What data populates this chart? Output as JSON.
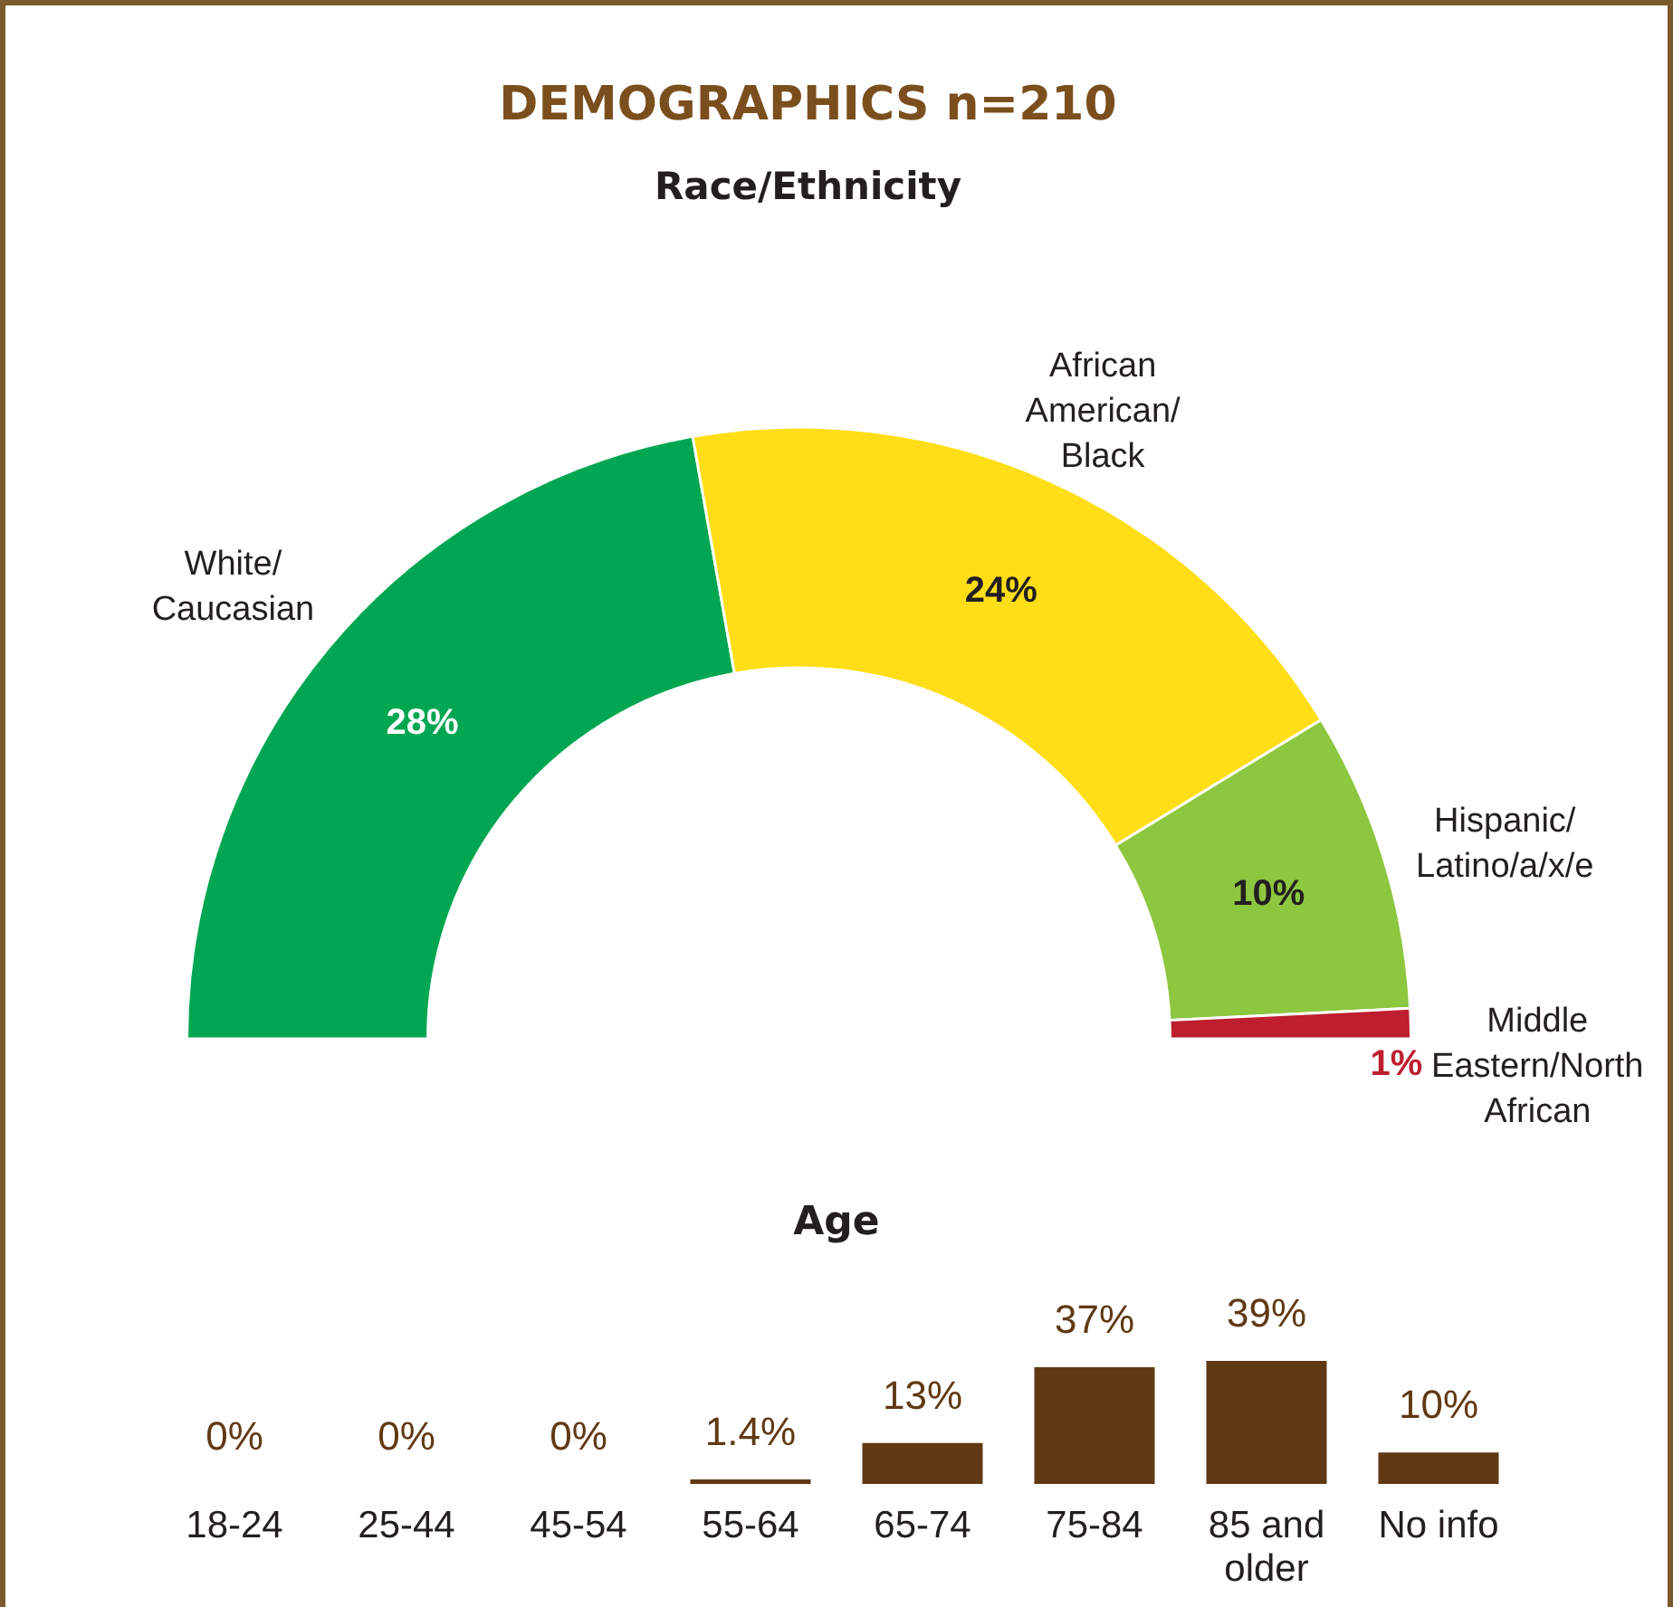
{
  "chart_data": [
    {
      "type": "donut",
      "title": "DEMOGRAPHICS n=210",
      "subtitle": "Race/Ethnicity",
      "categories": [
        "White/Caucasian",
        "African American/Black",
        "Hispanic/Latino/a/x/e",
        "Middle Eastern/North African"
      ],
      "values": [
        28,
        24,
        10,
        1
      ],
      "colors": [
        "#00a651",
        "#ffde17",
        "#8dc63f",
        "#be1e2d"
      ],
      "value_labels": [
        "28%",
        "24%",
        "10%",
        "1%"
      ]
    },
    {
      "type": "bar",
      "title": "Age",
      "categories": [
        "18-24",
        "25-44",
        "45-54",
        "55-64",
        "65-74",
        "75-84",
        "85 and older",
        "No info"
      ],
      "values": [
        0,
        0,
        0,
        1.4,
        13,
        37,
        39,
        10
      ],
      "color": "#603913",
      "value_labels": [
        "0%",
        "0%",
        "0%",
        "1.4%",
        "13%",
        "37%",
        "39%",
        "10%"
      ],
      "tick_labels": "x"
    }
  ]
}
